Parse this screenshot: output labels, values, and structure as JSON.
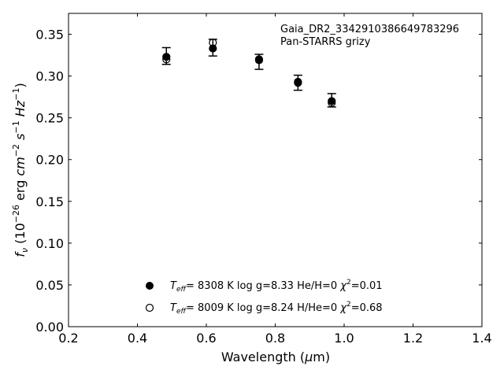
{
  "chart_data": {
    "type": "scatter",
    "title": "",
    "annotation_lines": [
      "Gaia_DR2_3342910386649783296",
      "Pan-STARRS grizy"
    ],
    "xlabel": "Wavelength (μm)",
    "ylabel": "fν (10⁻²⁶ erg cm⁻² s⁻¹ Hz⁻¹)",
    "xlim": [
      0.2,
      1.4
    ],
    "ylim": [
      0.0,
      0.375
    ],
    "xticks": [
      0.2,
      0.4,
      0.6,
      0.8,
      1.0,
      1.2,
      1.4
    ],
    "xtick_labels": [
      "0.2",
      "0.4",
      "0.6",
      "0.8",
      "1.0",
      "1.2",
      "1.4"
    ],
    "yticks": [
      0.0,
      0.05,
      0.1,
      0.15,
      0.2,
      0.25,
      0.3,
      0.35
    ],
    "ytick_labels": [
      "0.00",
      "0.05",
      "0.10",
      "0.15",
      "0.20",
      "0.25",
      "0.30",
      "0.35"
    ],
    "grid": false,
    "legend_position": "bottom-center",
    "observed": {
      "x": [
        0.484,
        0.619,
        0.753,
        0.866,
        0.964
      ],
      "y": [
        0.324,
        0.334,
        0.317,
        0.292,
        0.271
      ],
      "yerr": [
        0.01,
        0.01,
        0.009,
        0.009,
        0.008
      ]
    },
    "series": [
      {
        "legend_label": "Teff= 8308 K  log g=8.33  He/H=0  χ²=0.01",
        "marker": "filled-circle",
        "x": [
          0.484,
          0.619,
          0.753,
          0.866,
          0.964
        ],
        "y": [
          0.323,
          0.333,
          0.319,
          0.293,
          0.27
        ]
      },
      {
        "legend_label": "Teff= 8009 K  log g=8.24  H/He=0  χ²=0.68",
        "marker": "open-circle",
        "x": [
          0.484,
          0.619,
          0.753,
          0.866,
          0.964
        ],
        "y": [
          0.32,
          0.34,
          0.32,
          0.292,
          0.268
        ]
      }
    ],
    "legend": [
      {
        "prefix": "T",
        "sub": "eff",
        "text": "=  8308 K  log g=8.33  He/H=0  ",
        "chi": "χ",
        "sup": "2",
        "tail": "=0.01"
      },
      {
        "prefix": "T",
        "sub": "eff",
        "text": "=  8009 K  log g=8.24  H/He=0  ",
        "chi": "χ",
        "sup": "2",
        "tail": "=0.68"
      }
    ]
  }
}
